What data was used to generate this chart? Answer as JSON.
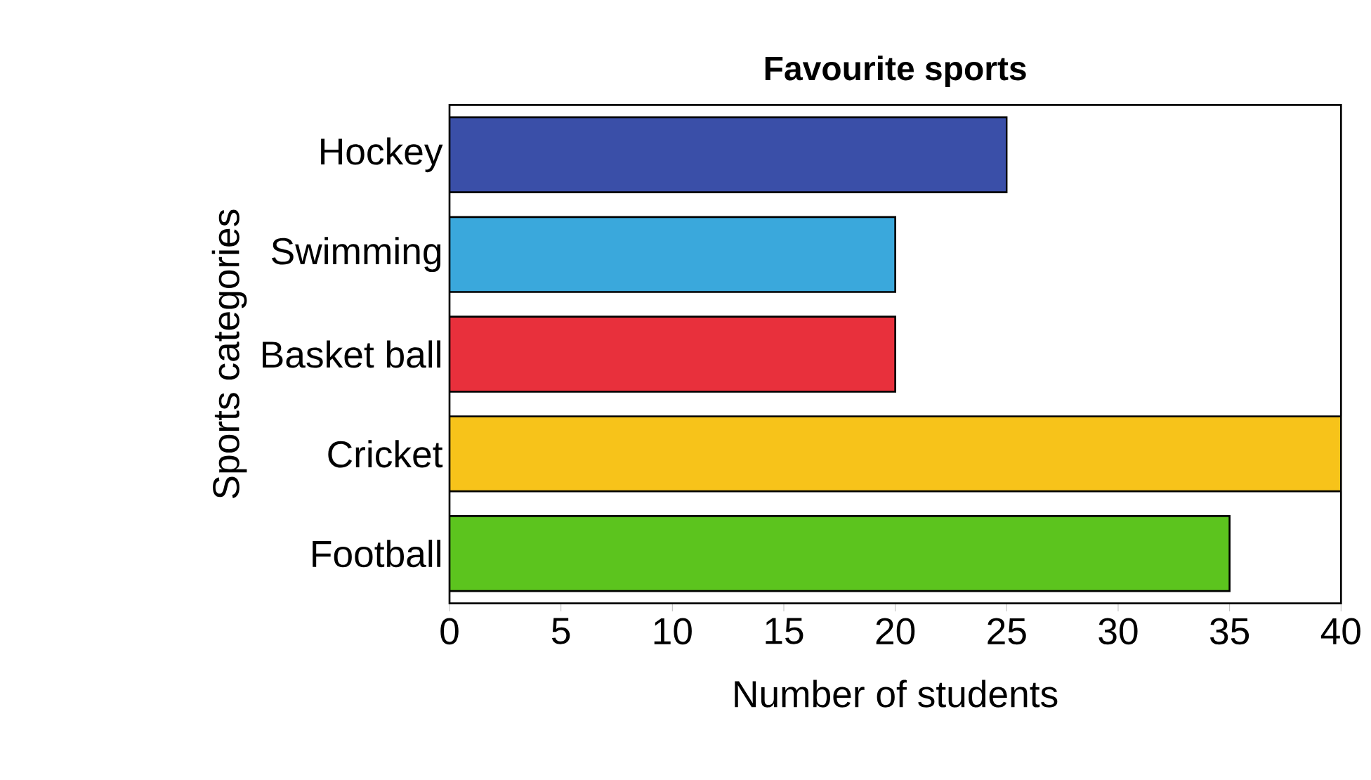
{
  "chart_data": {
    "type": "bar",
    "orientation": "horizontal",
    "title": "Favourite sports",
    "xlabel": "Number of students",
    "ylabel": "Sports categories",
    "categories": [
      "Hockey",
      "Swimming",
      "Basket ball",
      "Cricket",
      "Football"
    ],
    "values": [
      25,
      20,
      20,
      40,
      35
    ],
    "colors": [
      "#3a4fa8",
      "#3aa8dc",
      "#e8303c",
      "#f7c31a",
      "#5cc41e"
    ],
    "xlim": [
      0,
      40
    ],
    "xticks": [
      0,
      5,
      10,
      15,
      20,
      25,
      30,
      35,
      40
    ],
    "grid": false
  }
}
